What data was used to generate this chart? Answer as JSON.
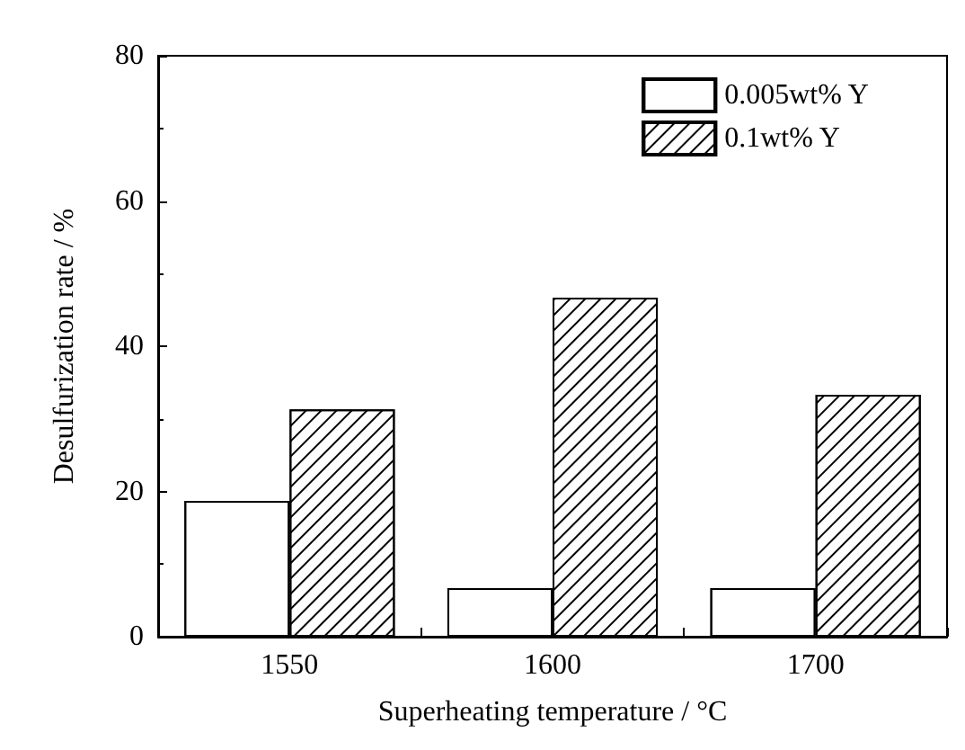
{
  "chart_data": {
    "type": "bar",
    "xlabel": "Superheating temperature / °C",
    "ylabel": "Desulfurization rate / %",
    "categories": [
      "1550",
      "1600",
      "1700"
    ],
    "series": [
      {
        "name": "0.005wt% Y",
        "color": "#ffffff",
        "values": [
          18.7,
          6.7,
          6.7
        ]
      },
      {
        "name": "0.1wt% Y",
        "color": "#ffffff",
        "values": [
          31.3,
          46.7,
          33.3
        ]
      }
    ],
    "ylim": [
      0,
      80
    ],
    "yticks": [
      0,
      20,
      40,
      60,
      80
    ],
    "grid": false,
    "legend": "top right"
  }
}
